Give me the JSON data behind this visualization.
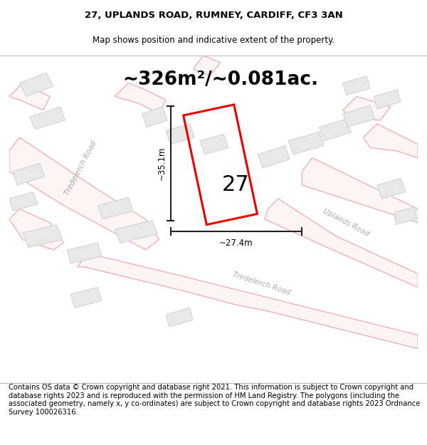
{
  "title_line1": "27, UPLANDS ROAD, RUMNEY, CARDIFF, CF3 3AN",
  "title_line2": "Map shows position and indicative extent of the property.",
  "area_text": "~326m²/~0.081ac.",
  "plot_number": "27",
  "dim_width": "~27.4m",
  "dim_height": "~35.1m",
  "footer_text": "Contains OS data © Crown copyright and database right 2021. This information is subject to Crown copyright and database rights 2023 and is reproduced with the permission of HM Land Registry. The polygons (including the associated geometry, namely x, y co-ordinates) are subject to Crown copyright and database rights 2023 Ordnance Survey 100026316.",
  "bg_color": "#ffffff",
  "plot_outline_color": "#ee0000",
  "road_pink": "#f2aaaa",
  "road_fill": "#fdf5f5",
  "building_fill": "#e8e8e8",
  "building_edge": "#cccccc",
  "road_label_color": "#aaaaaa",
  "dim_line_color": "#222222",
  "title_fontsize": 9.5,
  "subtitle_fontsize": 8.5,
  "area_fontsize": 19,
  "plot_num_fontsize": 22,
  "footer_fontsize": 7.2,
  "road_lw": 0.9,
  "plot_lw": 2.2
}
